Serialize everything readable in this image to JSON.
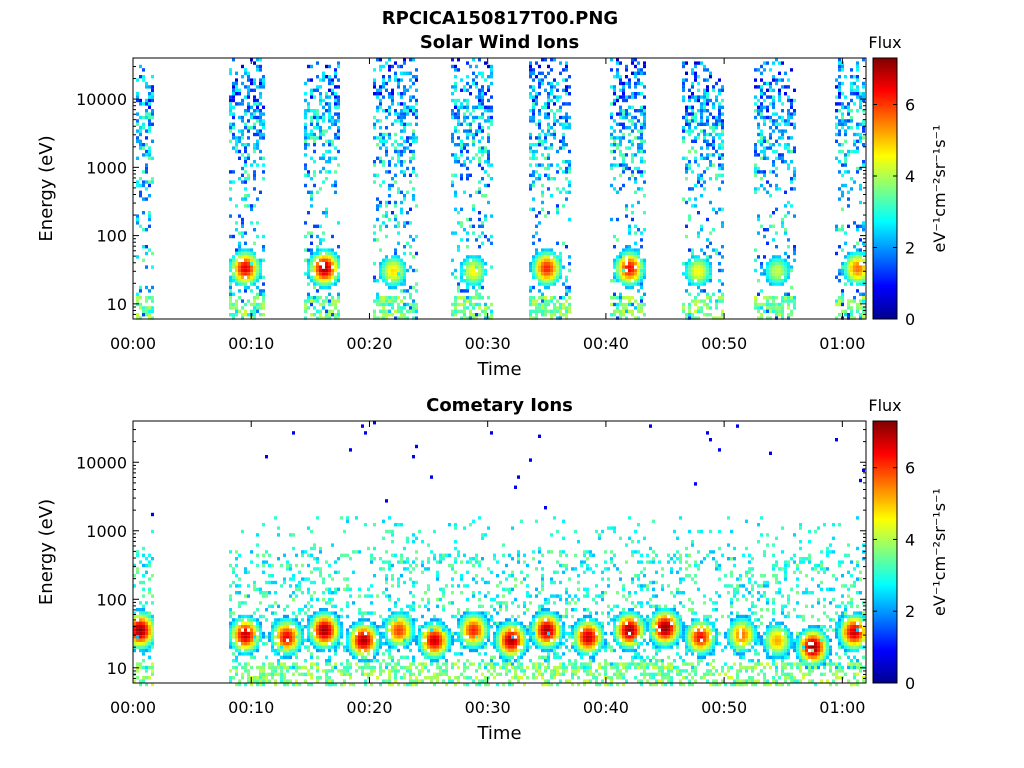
{
  "figure": {
    "file_title": "RPCICA150817T00.PNG"
  },
  "colormap": [
    "#00008f",
    "#0000ff",
    "#0080ff",
    "#00ffff",
    "#80ff80",
    "#ffff00",
    "#ff8000",
    "#ff0000",
    "#800000"
  ],
  "chart_data": [
    {
      "type": "heatmap",
      "title": "Solar Wind Ions",
      "xlabel": "Time",
      "ylabel": "Energy (eV)",
      "x_range": [
        "00:00",
        "01:02"
      ],
      "x_ticks": [
        "00:00",
        "00:10",
        "00:20",
        "00:30",
        "00:40",
        "00:50",
        "01:00"
      ],
      "y_scale": "log",
      "y_range": [
        6,
        40000
      ],
      "y_ticks": [
        {
          "value": 10,
          "label": "10"
        },
        {
          "value": 100,
          "label": "100"
        },
        {
          "value": 1000,
          "label": "1000"
        },
        {
          "value": 10000,
          "label": "10000"
        }
      ],
      "colorbar": {
        "title": "Flux",
        "unit": "eV⁻¹cm⁻²sr⁻¹s⁻¹",
        "range": [
          0,
          7.3
        ],
        "ticks": [
          "0",
          "2",
          "4",
          "6"
        ]
      },
      "observation_intervals_min": [
        [
          0.2,
          1.7
        ],
        [
          8.0,
          11.2
        ],
        [
          14.5,
          17.6
        ],
        [
          20.3,
          24.0
        ],
        [
          27.0,
          30.5
        ],
        [
          33.5,
          37.0
        ],
        [
          40.3,
          43.5
        ],
        [
          46.5,
          50.0
        ],
        [
          52.5,
          56.0
        ],
        [
          59.5,
          62.0
        ]
      ],
      "peaks": [
        {
          "time_min": 9.5,
          "energy_ev": 33,
          "flux": 6.6
        },
        {
          "time_min": 16.2,
          "energy_ev": 33,
          "flux": 7.0
        },
        {
          "time_min": 22.0,
          "energy_ev": 30,
          "flux": 4.8
        },
        {
          "time_min": 28.8,
          "energy_ev": 30,
          "flux": 4.6
        },
        {
          "time_min": 35.0,
          "energy_ev": 33,
          "flux": 6.2
        },
        {
          "time_min": 42.0,
          "energy_ev": 33,
          "flux": 6.4
        },
        {
          "time_min": 47.8,
          "energy_ev": 30,
          "flux": 4.6
        },
        {
          "time_min": 54.5,
          "energy_ev": 30,
          "flux": 4.2
        },
        {
          "time_min": 61.3,
          "energy_ev": 33,
          "flux": 5.6
        }
      ]
    },
    {
      "type": "heatmap",
      "title": "Cometary Ions",
      "xlabel": "Time",
      "ylabel": "Energy (eV)",
      "x_range": [
        "00:00",
        "01:02"
      ],
      "x_ticks": [
        "00:00",
        "00:10",
        "00:20",
        "00:30",
        "00:40",
        "00:50",
        "01:00"
      ],
      "y_scale": "log",
      "y_range": [
        6,
        40000
      ],
      "y_ticks": [
        {
          "value": 10,
          "label": "10"
        },
        {
          "value": 100,
          "label": "100"
        },
        {
          "value": 1000,
          "label": "1000"
        },
        {
          "value": 10000,
          "label": "10000"
        }
      ],
      "colorbar": {
        "title": "Flux",
        "unit": "eV⁻¹cm⁻²sr⁻¹s⁻¹",
        "range": [
          0,
          7.3
        ],
        "ticks": [
          "0",
          "2",
          "4",
          "6"
        ]
      },
      "observation_intervals_min": [
        [
          0.0,
          1.7
        ],
        [
          8.0,
          62.0
        ]
      ],
      "peaks": [
        {
          "time_min": 0.6,
          "energy_ev": 35,
          "flux": 7.2
        },
        {
          "time_min": 9.5,
          "energy_ev": 30,
          "flux": 6.8
        },
        {
          "time_min": 13.0,
          "energy_ev": 28,
          "flux": 6.5
        },
        {
          "time_min": 16.2,
          "energy_ev": 35,
          "flux": 7.1
        },
        {
          "time_min": 19.5,
          "energy_ev": 25,
          "flux": 7.0
        },
        {
          "time_min": 22.5,
          "energy_ev": 35,
          "flux": 6.0
        },
        {
          "time_min": 25.5,
          "energy_ev": 25,
          "flux": 6.8
        },
        {
          "time_min": 28.8,
          "energy_ev": 35,
          "flux": 6.2
        },
        {
          "time_min": 32.0,
          "energy_ev": 25,
          "flux": 7.0
        },
        {
          "time_min": 35.0,
          "energy_ev": 35,
          "flux": 7.0
        },
        {
          "time_min": 38.5,
          "energy_ev": 28,
          "flux": 6.8
        },
        {
          "time_min": 42.0,
          "energy_ev": 35,
          "flux": 7.1
        },
        {
          "time_min": 45.0,
          "energy_ev": 38,
          "flux": 7.2
        },
        {
          "time_min": 48.0,
          "energy_ev": 28,
          "flux": 6.4
        },
        {
          "time_min": 51.5,
          "energy_ev": 30,
          "flux": 5.6
        },
        {
          "time_min": 54.5,
          "energy_ev": 25,
          "flux": 5.2
        },
        {
          "time_min": 57.5,
          "energy_ev": 20,
          "flux": 7.2
        },
        {
          "time_min": 61.0,
          "energy_ev": 33,
          "flux": 6.8
        }
      ]
    }
  ]
}
